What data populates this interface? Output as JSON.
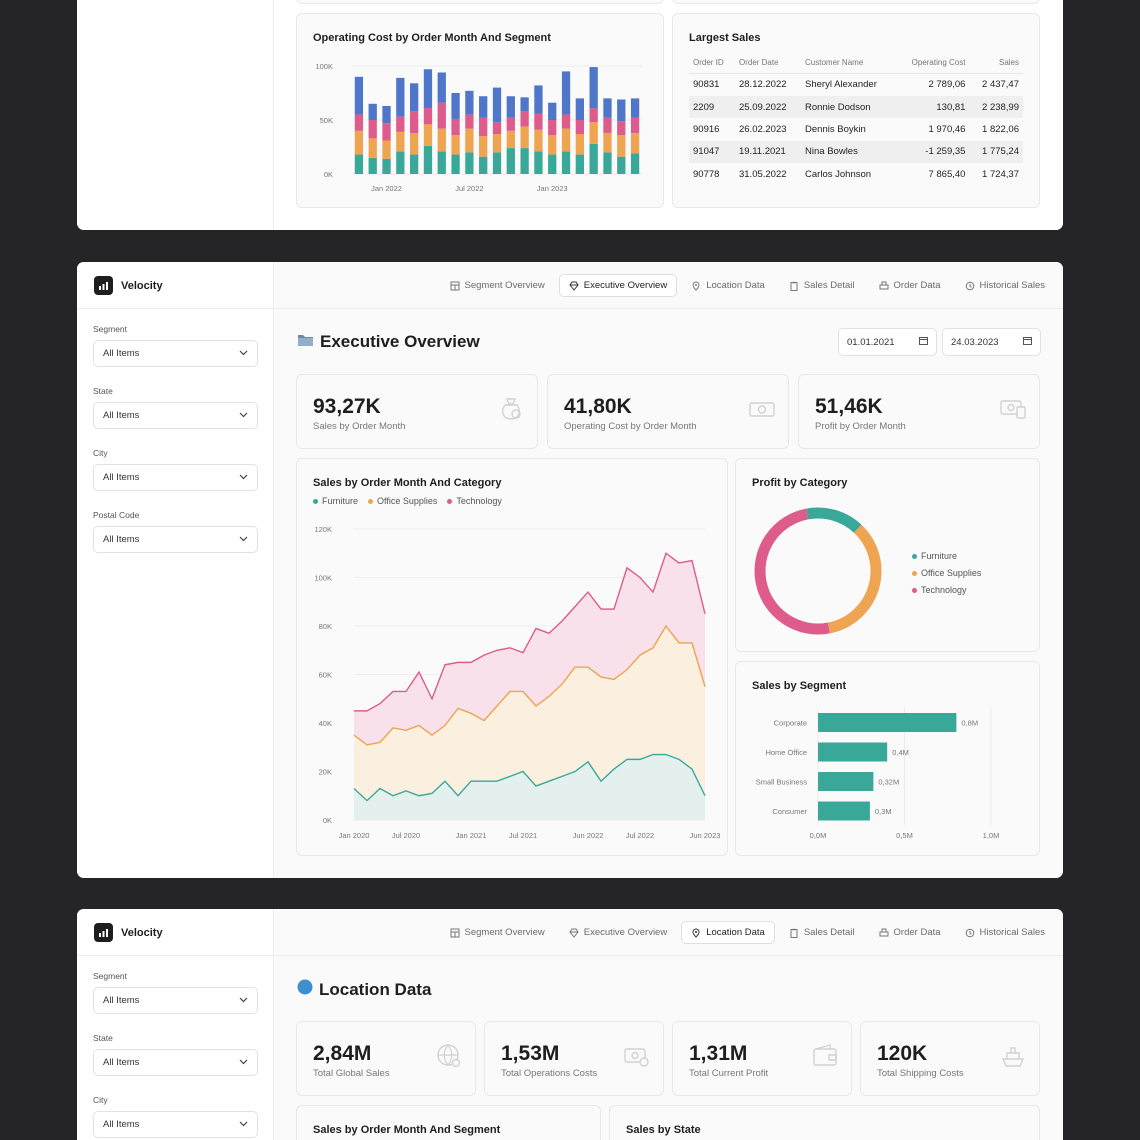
{
  "app": {
    "name": "Velocity"
  },
  "nav": {
    "tabs": [
      "Segment Overview",
      "Executive Overview",
      "Location Data",
      "Sales Detail",
      "Order Data",
      "Historical Sales"
    ]
  },
  "filters": {
    "items": [
      {
        "label": "Segment",
        "value": "All Items"
      },
      {
        "label": "State",
        "value": "All Items"
      },
      {
        "label": "City",
        "value": "All Items"
      },
      {
        "label": "Postal Code",
        "value": "All Items"
      }
    ]
  },
  "colors": {
    "teal": "#3aa898",
    "orange": "#eea451",
    "pink": "#dd5c8b",
    "blue": "#4f76c8"
  },
  "s1": {
    "op_chart_title": "Operating Cost by Order Month And Segment",
    "largest_title": "Largest Sales",
    "table": {
      "headers": [
        "Order ID",
        "Order Date",
        "Customer Name",
        "Operating Cost",
        "Sales"
      ],
      "rows": [
        [
          "90831",
          "28.12.2022",
          "Sheryl Alexander",
          "2 789,06",
          "2 437,47"
        ],
        [
          "2209",
          "25.09.2022",
          "Ronnie Dodson",
          "130,81",
          "2 238,99"
        ],
        [
          "90916",
          "26.02.2023",
          "Dennis Boykin",
          "1 970,46",
          "1 822,06"
        ],
        [
          "91047",
          "19.11.2021",
          "Nina Bowles",
          "-1 259,35",
          "1 775,24"
        ],
        [
          "90778",
          "31.05.2022",
          "Carlos Johnson",
          "7 865,40",
          "1 724,37"
        ]
      ]
    }
  },
  "s2": {
    "page_title": "Executive Overview",
    "page_icon": "folder-icon",
    "date_from": "01.01.2021",
    "date_to": "24.03.2023",
    "kpis": [
      {
        "value": "93,27K",
        "label": "Sales by Order Month",
        "icon": "money-bag-icon"
      },
      {
        "value": "41,80K",
        "label": "Operating Cost by Order Month",
        "icon": "banknote-icon"
      },
      {
        "value": "51,46K",
        "label": "Profit by Order Month",
        "icon": "cash-receipt-icon"
      }
    ],
    "area_title": "Sales by Order Month And Category",
    "donut_title": "Profit by Category",
    "seg_title": "Sales by Segment",
    "legend": [
      "Furniture",
      "Office Supplies",
      "Technology"
    ]
  },
  "s3": {
    "page_title": "Location Data",
    "page_icon": "globe-icon",
    "kpis": [
      {
        "value": "2,84M",
        "label": "Total Global Sales",
        "icon": "globe-gear-icon"
      },
      {
        "value": "1,53M",
        "label": "Total Operations Costs",
        "icon": "money-gear-icon"
      },
      {
        "value": "1,31M",
        "label": "Total Current Profit",
        "icon": "wallet-icon"
      },
      {
        "value": "120K",
        "label": "Total Shipping Costs",
        "icon": "ship-icon"
      }
    ],
    "card1_title": "Sales by Order Month And Segment",
    "card2_title": "Sales by State"
  },
  "chart_data": [
    {
      "type": "bar",
      "title": "Operating Cost by Order Month And Segment",
      "stacked": true,
      "x_ticks": [
        "Jan 2022",
        "Jul 2022",
        "Jan 2023"
      ],
      "y_ticks": [
        "0K",
        "50K",
        "100K"
      ],
      "ylim": [
        0,
        100000
      ],
      "series": [
        {
          "color": "#3aa898",
          "values": [
            18000,
            15000,
            14000,
            21000,
            18000,
            26000,
            21000,
            18000,
            20000,
            16000,
            20000,
            24000,
            24000,
            21000,
            18000,
            21000,
            18000,
            28000,
            20000,
            16000,
            19000
          ]
        },
        {
          "color": "#eea451",
          "values": [
            22000,
            18000,
            17000,
            18000,
            20000,
            20000,
            21000,
            18000,
            22000,
            19000,
            17000,
            16000,
            20000,
            20000,
            18000,
            21000,
            19000,
            20000,
            18000,
            20000,
            19000
          ]
        },
        {
          "color": "#dd5c8b",
          "values": [
            15000,
            17000,
            16000,
            14000,
            20000,
            15000,
            24000,
            15000,
            13000,
            17000,
            11000,
            12000,
            14000,
            15000,
            14000,
            13000,
            13000,
            13000,
            14000,
            13000,
            14000
          ]
        },
        {
          "color": "#4f76c8",
          "values": [
            35000,
            15000,
            16000,
            36000,
            26000,
            36000,
            28000,
            24000,
            22000,
            20000,
            32000,
            20000,
            13000,
            26000,
            16000,
            40000,
            20000,
            38000,
            18000,
            20000,
            18000
          ]
        }
      ]
    },
    {
      "type": "area",
      "title": "Sales by Order Month And Category",
      "stacked": true,
      "x_ticks": [
        "Jan 2020",
        "Jul 2020",
        "Jan 2021",
        "Jul 2021",
        "Jun 2022",
        "Jul 2022",
        "Jun 2023"
      ],
      "y_ticks": [
        "0K",
        "20K",
        "40K",
        "60K",
        "80K",
        "100K",
        "120K"
      ],
      "ylim": [
        0,
        120000
      ],
      "series": [
        {
          "name": "Furniture",
          "color": "#3aa898",
          "values": [
            13000,
            8000,
            13000,
            10000,
            12000,
            10000,
            11000,
            16000,
            10000,
            16000,
            16000,
            16000,
            18000,
            20000,
            14000,
            16000,
            18000,
            20000,
            24000,
            16000,
            21000,
            25000,
            25000,
            27000,
            27000,
            25000,
            21000,
            10000
          ]
        },
        {
          "name": "Office Supplies",
          "color": "#eea451",
          "values": [
            35000,
            31000,
            32000,
            38000,
            37000,
            39000,
            35000,
            39000,
            46000,
            44000,
            41000,
            47000,
            53000,
            53000,
            47000,
            51000,
            56000,
            63000,
            63000,
            59000,
            58000,
            62000,
            68000,
            71000,
            80000,
            73000,
            73000,
            55000
          ]
        },
        {
          "name": "Technology",
          "color": "#dd5c8b",
          "values": [
            45000,
            45000,
            48000,
            53000,
            53000,
            61000,
            50000,
            64000,
            65000,
            65000,
            68000,
            70000,
            71000,
            69000,
            79000,
            77000,
            82000,
            88000,
            94000,
            87000,
            87000,
            104000,
            100000,
            94000,
            110000,
            106000,
            107000,
            85000
          ]
        }
      ]
    },
    {
      "type": "pie",
      "title": "Profit by Category",
      "donut": true,
      "labels": [
        "Furniture",
        "Office Supplies",
        "Technology"
      ],
      "values": [
        15,
        35,
        50
      ],
      "colors": [
        "#3aa898",
        "#eea451",
        "#dd5c8b"
      ]
    },
    {
      "type": "bar",
      "orientation": "horizontal",
      "title": "Sales by Segment",
      "categories": [
        "Corporate",
        "Home Office",
        "Small Business",
        "Consumer"
      ],
      "values": [
        0.8,
        0.4,
        0.32,
        0.3
      ],
      "data_labels": [
        "0,8M",
        "0,4M",
        "0,32M",
        "0,3M"
      ],
      "x_ticks": [
        "0,0M",
        "0,5M",
        "1,0M"
      ],
      "xlim": [
        0,
        1.0
      ],
      "color": "#3aa898"
    }
  ]
}
